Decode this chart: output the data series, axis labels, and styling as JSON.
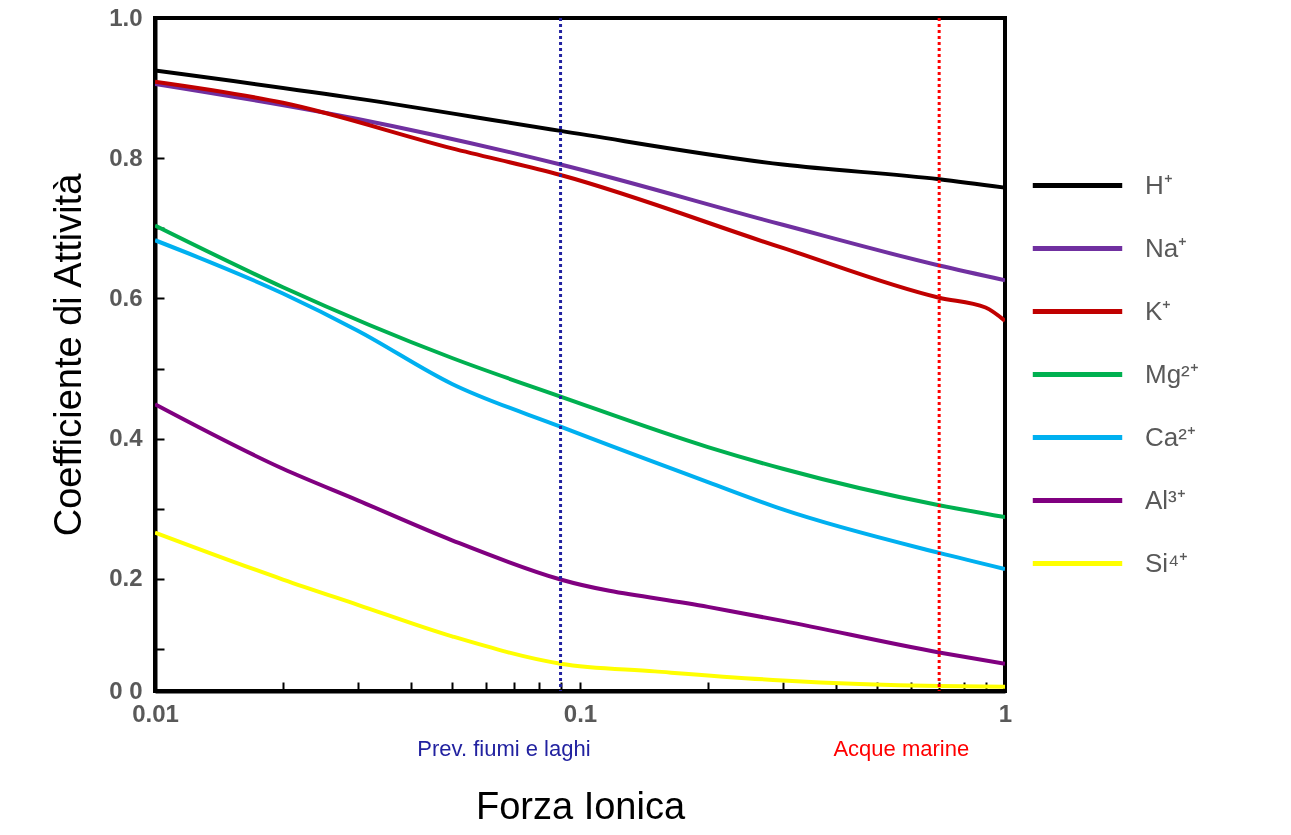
{
  "chart_data": {
    "type": "line",
    "xlabel": "Forza Ionica",
    "ylabel": "Coefficiente di Attività",
    "log": "x",
    "xlim": [
      0.01,
      1
    ],
    "ylim": [
      0.04,
      1.0
    ],
    "xticks": [
      0.01,
      {
        "value": 0.02,
        "label": null
      },
      {
        "value": 0.03,
        "label": null
      },
      {
        "value": 0.04,
        "label": null
      },
      {
        "value": 0.05,
        "label": null
      },
      {
        "value": 0.06,
        "label": null
      },
      {
        "value": 0.07,
        "label": null
      },
      {
        "value": 0.08,
        "label": null
      },
      {
        "value": 0.09,
        "label": null
      },
      0.1,
      {
        "value": 0.2,
        "label": null
      },
      {
        "value": 0.3,
        "label": null
      },
      {
        "value": 0.4,
        "label": null
      },
      {
        "value": 0.5,
        "label": null
      },
      {
        "value": 0.6,
        "label": null
      },
      {
        "value": 0.7,
        "label": null
      },
      {
        "value": 0.8,
        "label": null
      },
      {
        "value": 0.9,
        "label": null
      },
      1
    ],
    "yticks": [
      {
        "value": 0.04,
        "label": "0 0"
      },
      {
        "value": 0.1,
        "label": null
      },
      0.2,
      {
        "value": 0.3,
        "label": null
      },
      0.4,
      {
        "value": 0.5,
        "label": null
      },
      0.6,
      {
        "value": 0.7,
        "label": null
      },
      0.8,
      {
        "value": 1.0,
        "label": "1.0"
      }
    ],
    "grid": false,
    "legend": "right",
    "marker": "none",
    "line_style": "solid",
    "series": [
      {
        "name": "H⁺",
        "color": "#000000",
        "x": [
          0.01,
          0.03,
          0.09,
          0.3,
          0.7,
          1
        ],
        "values": [
          0.925,
          0.885,
          0.839,
          0.791,
          0.77,
          0.758
        ]
      },
      {
        "name": "Na⁺",
        "color": "#7030a0",
        "x": [
          0.01,
          0.03,
          0.09,
          0.3,
          0.7,
          1
        ],
        "values": [
          0.906,
          0.856,
          0.791,
          0.705,
          0.647,
          0.626
        ]
      },
      {
        "name": "K⁺",
        "color": "#c00000",
        "x": [
          0.01,
          0.02,
          0.05,
          0.09,
          0.3,
          0.7,
          0.9,
          1
        ],
        "values": [
          0.909,
          0.879,
          0.814,
          0.776,
          0.672,
          0.601,
          0.587,
          0.568
        ]
      },
      {
        "name": "Mg²⁺",
        "color": "#00b050",
        "x": [
          0.01,
          0.02,
          0.05,
          0.09,
          0.2,
          0.3,
          0.7,
          1
        ],
        "values": [
          0.704,
          0.616,
          0.515,
          0.46,
          0.388,
          0.357,
          0.305,
          0.288
        ]
      },
      {
        "name": "Ca²⁺",
        "color": "#00b0f0",
        "x": [
          0.01,
          0.02,
          0.03,
          0.05,
          0.09,
          0.2,
          0.3,
          0.7,
          1
        ],
        "values": [
          0.683,
          0.607,
          0.554,
          0.478,
          0.417,
          0.338,
          0.299,
          0.237,
          0.214
        ]
      },
      {
        "name": "Al³⁺",
        "color": "#800080",
        "x": [
          0.01,
          0.02,
          0.03,
          0.05,
          0.09,
          0.2,
          0.3,
          0.7,
          1
        ],
        "values": [
          0.449,
          0.357,
          0.312,
          0.255,
          0.199,
          0.16,
          0.14,
          0.095,
          0.079
        ]
      },
      {
        "name": "Si⁴⁺",
        "color": "#ffff00",
        "x": [
          0.01,
          0.02,
          0.03,
          0.05,
          0.09,
          0.15,
          0.3,
          0.7,
          1
        ],
        "values": [
          0.266,
          0.199,
          0.163,
          0.118,
          0.079,
          0.068,
          0.055,
          0.047,
          0.046
        ]
      }
    ],
    "ref_lines": [
      {
        "axis": "x",
        "value": 0.09,
        "label": "Prev. fiumi e laghi",
        "color": "#2222a0",
        "line_style": "dotted"
      },
      {
        "axis": "x",
        "value": 0.7,
        "label": "Acque marine",
        "color": "#ff0000",
        "line_style": "dotted"
      }
    ]
  }
}
